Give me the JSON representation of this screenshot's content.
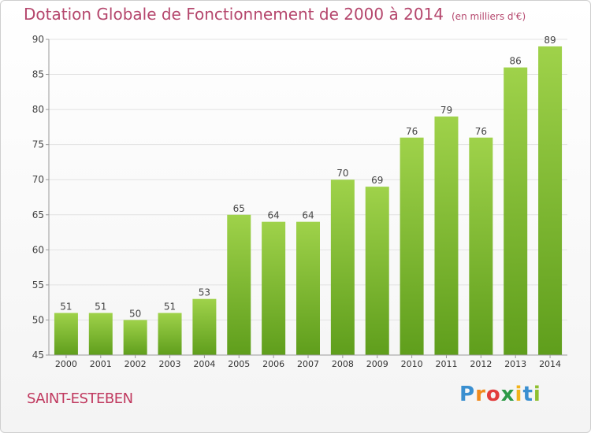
{
  "header": {
    "title": "Dotation Globale de Fonctionnement de 2000 à 2014",
    "subtitle": "(en milliers d'€)"
  },
  "footer": {
    "commune": "SAINT-ESTEBEN",
    "logo": "Proxiti"
  },
  "chart_data": {
    "type": "bar",
    "title": "Dotation Globale de Fonctionnement de 2000 à 2014",
    "subtitle": "(en milliers d'€)",
    "xlabel": "",
    "ylabel": "",
    "categories": [
      "2000",
      "2001",
      "2002",
      "2003",
      "2004",
      "2005",
      "2006",
      "2007",
      "2008",
      "2009",
      "2010",
      "2011",
      "2012",
      "2013",
      "2014"
    ],
    "values": [
      51,
      51,
      50,
      51,
      53,
      65,
      64,
      64,
      70,
      69,
      76,
      79,
      76,
      86,
      89
    ],
    "ylim": [
      45,
      90
    ],
    "yticks": [
      45,
      50,
      55,
      60,
      65,
      70,
      75,
      80,
      85,
      90
    ],
    "grid": true,
    "legend": "none",
    "colors": {
      "bar_light": "#9fd24a",
      "bar_dark": "#5f9e1c",
      "grid": "#e2e2e2",
      "axis": "#999999"
    }
  }
}
